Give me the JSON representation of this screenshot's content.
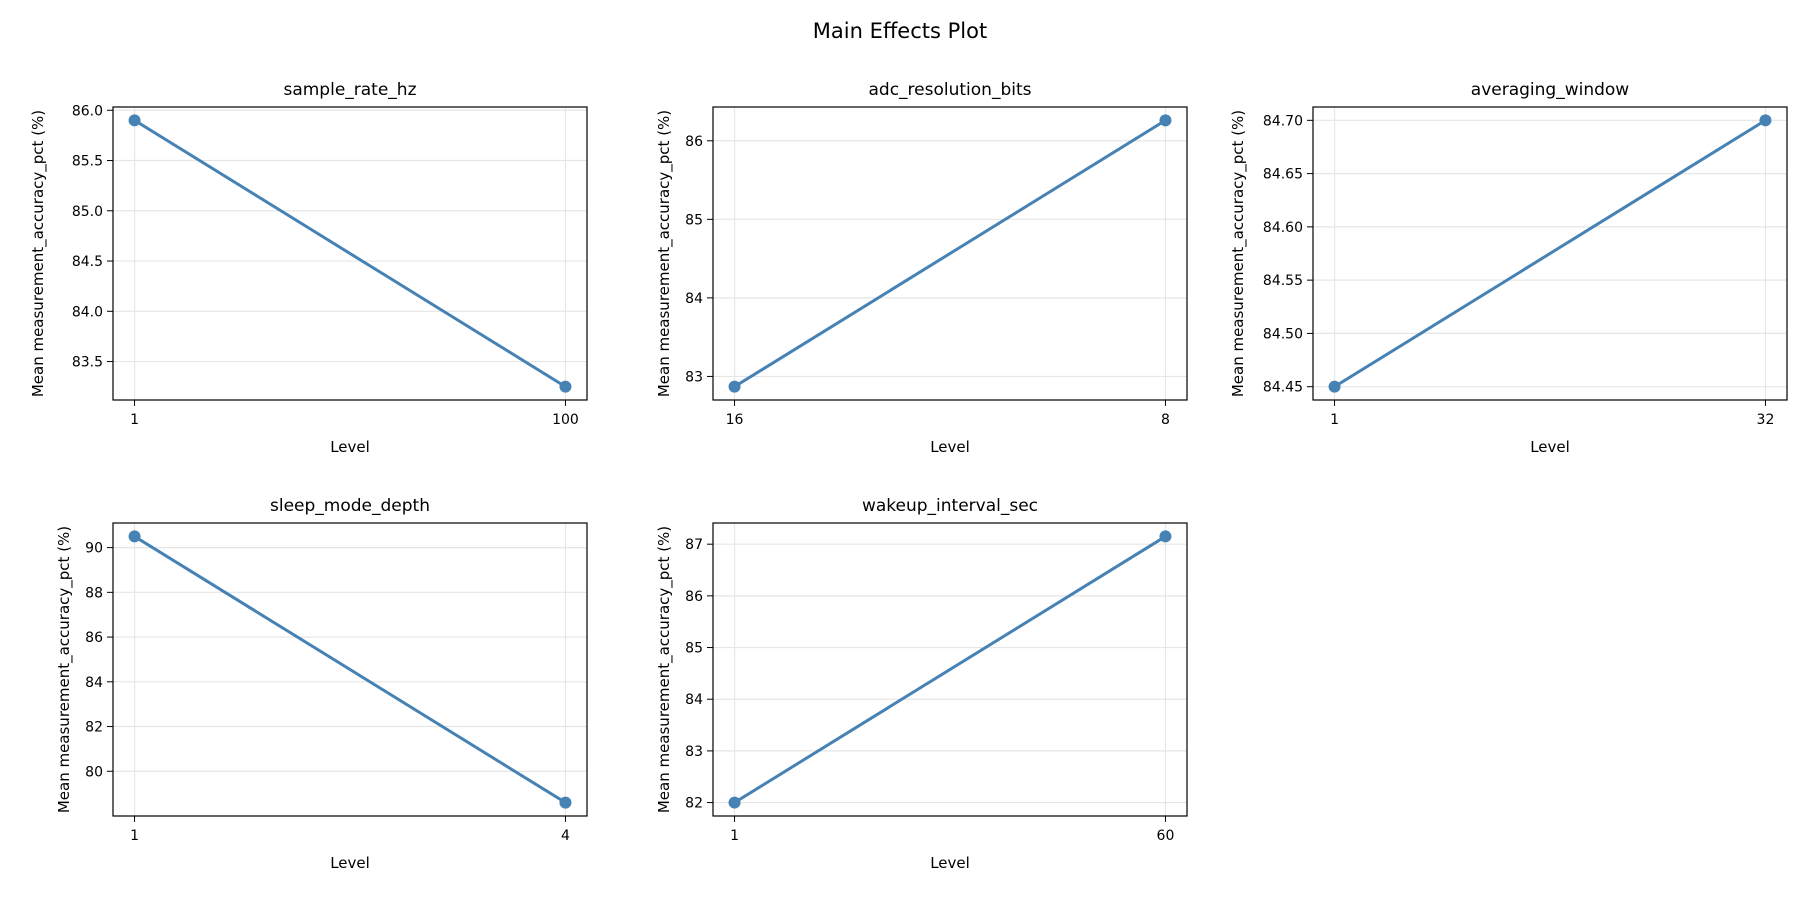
{
  "suptitle": "Main Effects Plot",
  "line_color": "#4682b4",
  "chart_data": [
    {
      "type": "line",
      "title": "sample_rate_hz",
      "xlabel": "Level",
      "ylabel": "Mean measurement_accuracy_pct (%)",
      "categories": [
        "1",
        "100"
      ],
      "values": [
        85.9,
        83.25
      ],
      "ylim": [
        83.1175,
        86.0325
      ],
      "yticks": [
        "86.0",
        "85.5",
        "85.0",
        "84.5",
        "84.0",
        "83.5"
      ],
      "grid": true
    },
    {
      "type": "line",
      "title": "adc_resolution_bits",
      "xlabel": "Level",
      "ylabel": "Mean measurement_accuracy_pct (%)",
      "categories": [
        "16",
        "8"
      ],
      "values": [
        82.87,
        86.26
      ],
      "ylim": [
        82.7,
        86.43
      ],
      "yticks": [
        "86",
        "85",
        "84",
        "83"
      ],
      "grid": true
    },
    {
      "type": "line",
      "title": "averaging_window",
      "xlabel": "Level",
      "ylabel": "Mean measurement_accuracy_pct (%)",
      "categories": [
        "1",
        "32"
      ],
      "values": [
        84.45,
        84.7
      ],
      "ylim": [
        84.4375,
        84.7125
      ],
      "yticks": [
        "84.70",
        "84.65",
        "84.60",
        "84.55",
        "84.50",
        "84.45"
      ],
      "grid": true
    },
    {
      "type": "line",
      "title": "sleep_mode_depth",
      "xlabel": "Level",
      "ylabel": "Mean measurement_accuracy_pct (%)",
      "categories": [
        "1",
        "4"
      ],
      "values": [
        90.5,
        78.6
      ],
      "ylim": [
        78.0,
        91.1
      ],
      "yticks": [
        "90",
        "88",
        "86",
        "84",
        "82",
        "80"
      ],
      "grid": true
    },
    {
      "type": "line",
      "title": "wakeup_interval_sec",
      "xlabel": "Level",
      "ylabel": "Mean measurement_accuracy_pct (%)",
      "categories": [
        "1",
        "60"
      ],
      "values": [
        82.0,
        87.15
      ],
      "ylim": [
        81.74,
        87.41
      ],
      "yticks": [
        "87",
        "86",
        "85",
        "84",
        "83",
        "82"
      ],
      "grid": true
    }
  ]
}
